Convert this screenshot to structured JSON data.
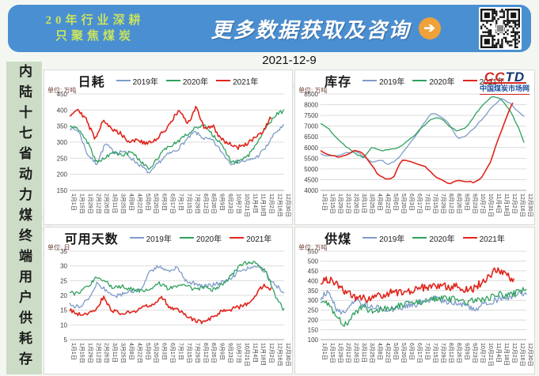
{
  "page": {
    "date": "2021-12-9",
    "watermark": "CCTD"
  },
  "banner": {
    "tagline_line1": "20年行业深耕",
    "tagline_line2": "只聚焦煤炭",
    "headline": "更多数据获取及咨询",
    "arrow_glyph": "➔"
  },
  "sidebar": {
    "vertical_title": "内陆十七省动力煤终端用户供耗存"
  },
  "logo": {
    "cc": "CC",
    "td": "TD",
    "site_name": "中国煤炭市场网"
  },
  "colors": {
    "s2019": "#7f9cc9",
    "s2020": "#2fa05e",
    "s2021": "#e0251c",
    "grid": "#dcdcdc",
    "axis": "#a6a6a6",
    "tick_text": "#3d3d3d"
  },
  "x_labels": [
    "1月1日",
    "1月15日",
    "1月29日",
    "2月12日",
    "2月26日",
    "3月11日",
    "3月25日",
    "4月8日",
    "4月22日",
    "5月6日",
    "5月20日",
    "6月3日",
    "6月17日",
    "7月1日",
    "7月15日",
    "7月29日",
    "8月12日",
    "8月26日",
    "9月9日",
    "9月23日",
    "10月7日",
    "10月21日",
    "11月4日",
    "11月18日",
    "12月2日",
    "12月16日",
    "12月30日"
  ],
  "chart_data": [
    {
      "type": "line",
      "title": "日耗",
      "unit_label": "单位: 万吨",
      "ylim": [
        150,
        450
      ],
      "ystep": 50,
      "grid": true,
      "legend_position": "top",
      "sample_step": 2,
      "series": [
        {
          "name": "2019年",
          "color_key": "s2019",
          "end_day": 364,
          "jitter": 6,
          "values": [
            345,
            335,
            262,
            232,
            295,
            268,
            272,
            248,
            225,
            202,
            238,
            262,
            276,
            305,
            332,
            312,
            305,
            270,
            235,
            240,
            242,
            255,
            285,
            330,
            350
          ]
        },
        {
          "name": "2020年",
          "color_key": "s2020",
          "end_day": 364,
          "jitter": 6,
          "values": [
            350,
            342,
            300,
            238,
            252,
            268,
            258,
            272,
            238,
            212,
            258,
            285,
            300,
            322,
            345,
            352,
            322,
            295,
            242,
            238,
            258,
            298,
            345,
            385,
            398
          ]
        },
        {
          "name": "2021年",
          "color_key": "s2021",
          "end_day": 343,
          "jitter": 7,
          "values": [
            385,
            405,
            368,
            310,
            372,
            338,
            330,
            302,
            308,
            295,
            302,
            328,
            362,
            400,
            355,
            408,
            345,
            350,
            310,
            295,
            283,
            295,
            312,
            332,
            382
          ]
        }
      ]
    },
    {
      "type": "line",
      "title": "库存",
      "unit_label": "单位: 万吨",
      "ylim": [
        4000,
        8500
      ],
      "ystep": 500,
      "grid": true,
      "legend_position": "top",
      "sample_step": 5,
      "series": [
        {
          "name": "2019年",
          "color_key": "s2019",
          "end_day": 364,
          "jitter": 30,
          "values": [
            5700,
            5600,
            5620,
            5750,
            5820,
            5600,
            5300,
            5420,
            5200,
            5450,
            6000,
            6500,
            7100,
            7650,
            7450,
            7100,
            6400,
            6550,
            6950,
            7400,
            7900,
            8280,
            8100,
            7700,
            7320
          ]
        },
        {
          "name": "2020年",
          "color_key": "s2020",
          "end_day": 364,
          "jitter": 30,
          "values": [
            7120,
            6850,
            6400,
            6050,
            5750,
            5520,
            6050,
            5850,
            5900,
            6000,
            6250,
            6600,
            7000,
            7350,
            7380,
            7000,
            6750,
            6950,
            7500,
            8050,
            8380,
            8300,
            7800,
            7000,
            5950
          ]
        },
        {
          "name": "2021年",
          "color_key": "s2021",
          "end_day": 343,
          "jitter": 30,
          "values": [
            5880,
            5650,
            5580,
            5620,
            5850,
            5800,
            5350,
            4800,
            4520,
            4600,
            5420,
            5380,
            5250,
            5080,
            4700,
            4480,
            4300,
            4480,
            4420,
            4380,
            4600,
            5300,
            6400,
            7400,
            8300
          ]
        }
      ]
    },
    {
      "type": "line",
      "title": "可用天数",
      "unit_label": "单位: 日",
      "ylim": [
        5,
        35
      ],
      "ystep": 5,
      "grid": true,
      "legend_position": "top",
      "sample_step": 2,
      "series": [
        {
          "name": "2019年",
          "color_key": "s2019",
          "end_day": 364,
          "jitter": 0.7,
          "values": [
            17,
            16,
            18.5,
            24,
            22,
            19.5,
            20.5,
            21.5,
            22,
            28,
            30,
            28.5,
            29.5,
            25,
            24,
            23,
            23.5,
            24.5,
            26,
            28,
            29.5,
            30,
            27.5,
            23.5,
            21
          ]
        },
        {
          "name": "2020年",
          "color_key": "s2020",
          "end_day": 364,
          "jitter": 0.7,
          "values": [
            21,
            20.5,
            23,
            26,
            24.5,
            22.5,
            23,
            22,
            21.5,
            22.5,
            24,
            22.5,
            23,
            23.5,
            22,
            22.5,
            22,
            23.5,
            26.5,
            30,
            31.5,
            30.5,
            28,
            20,
            15
          ]
        },
        {
          "name": "2021年",
          "color_key": "s2021",
          "end_day": 343,
          "jitter": 0.7,
          "values": [
            15,
            13.8,
            14,
            14.5,
            19.5,
            15,
            14,
            14.2,
            15,
            16.5,
            17,
            19.3,
            15.5,
            14.8,
            12.5,
            11.5,
            10.8,
            13,
            14.5,
            15,
            16,
            17,
            20,
            23.4,
            22.2
          ]
        }
      ]
    },
    {
      "type": "line",
      "title": "供煤",
      "unit_label": "单位: 万吨",
      "ylim": [
        100,
        550
      ],
      "ystep": 50,
      "grid": true,
      "legend_position": "top",
      "sample_step": 2,
      "series": [
        {
          "name": "2019年",
          "color_key": "s2019",
          "end_day": 364,
          "jitter": 16,
          "values": [
            315,
            350,
            240,
            250,
            295,
            280,
            270,
            262,
            255,
            262,
            275,
            280,
            295,
            310,
            300,
            295,
            290,
            265,
            255,
            280,
            295,
            310,
            315,
            330,
            335
          ]
        },
        {
          "name": "2020年",
          "color_key": "s2020",
          "end_day": 364,
          "jitter": 16,
          "values": [
            300,
            280,
            205,
            175,
            235,
            270,
            240,
            255,
            262,
            270,
            282,
            288,
            295,
            305,
            312,
            305,
            308,
            295,
            302,
            305,
            318,
            330,
            328,
            342,
            358
          ]
        },
        {
          "name": "2021年",
          "color_key": "s2021",
          "end_day": 343,
          "jitter": 20,
          "values": [
            395,
            405,
            385,
            345,
            318,
            312,
            305,
            318,
            332,
            345,
            335,
            350,
            358,
            368,
            372,
            380,
            365,
            368,
            352,
            358,
            395,
            430,
            460,
            430,
            405
          ]
        }
      ]
    }
  ]
}
